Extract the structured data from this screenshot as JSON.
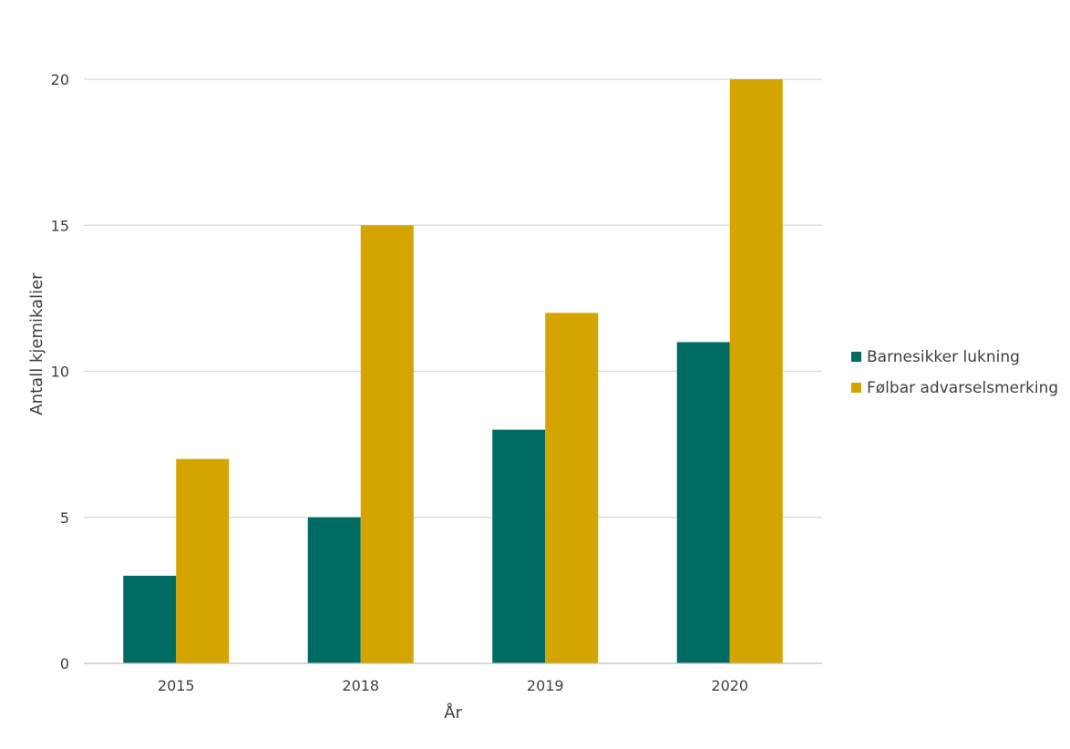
{
  "chart_data": {
    "type": "bar",
    "title": "",
    "xlabel": "År",
    "ylabel": "Antall kjemikalier",
    "categories": [
      "2015",
      "2018",
      "2019",
      "2020"
    ],
    "series": [
      {
        "name": "Barnesikker lukning",
        "values": [
          3,
          5,
          8,
          11
        ],
        "color": "#006b63"
      },
      {
        "name": "Følbar advarselsmerking",
        "values": [
          7,
          15,
          12,
          20
        ],
        "color": "#d4a500"
      }
    ],
    "ylim": [
      0,
      20
    ],
    "yticks": [
      0,
      5,
      10,
      15,
      20
    ],
    "grid": true,
    "legend_position": "right"
  }
}
